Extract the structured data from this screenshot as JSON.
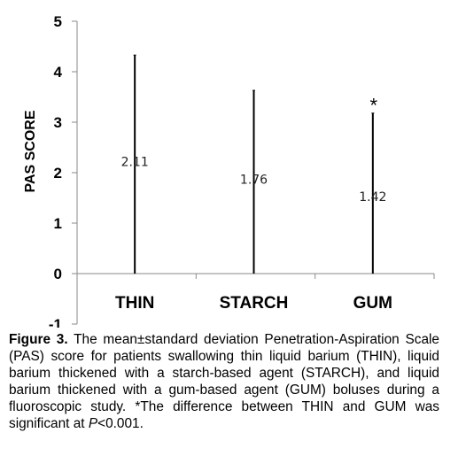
{
  "chart_data": {
    "type": "bar",
    "ylabel": "PAS SCORE",
    "xlabel": "",
    "ylim": [
      -1,
      5
    ],
    "yticks": [
      "-1",
      "0",
      "1",
      "2",
      "3",
      "4",
      "5"
    ],
    "grid": false,
    "categories": [
      "THIN",
      "STARCH",
      "GUM"
    ],
    "values": [
      2.11,
      1.76,
      1.42
    ],
    "value_labels": [
      "2.11",
      "1.76",
      "1.42"
    ],
    "error_upper": [
      4.33,
      3.63,
      3.18
    ],
    "error_lower": [
      0,
      0,
      0
    ],
    "significance": [
      {
        "category": "GUM",
        "marker": "*"
      }
    ]
  },
  "caption": {
    "label": "Figure 3.",
    "text": " The mean±standard deviation Penetration-Aspiration Scale (PAS) score for patients swallowing thin liquid barium (THIN), liquid barium thickened with a starch-based agent (STARCH), and liquid barium thickened with a gum-based agent (GUM) boluses during a fluoroscopic study. *The difference between THIN and GUM was significant at ",
    "p_symbol": "P",
    "p_value": "<0.001."
  }
}
